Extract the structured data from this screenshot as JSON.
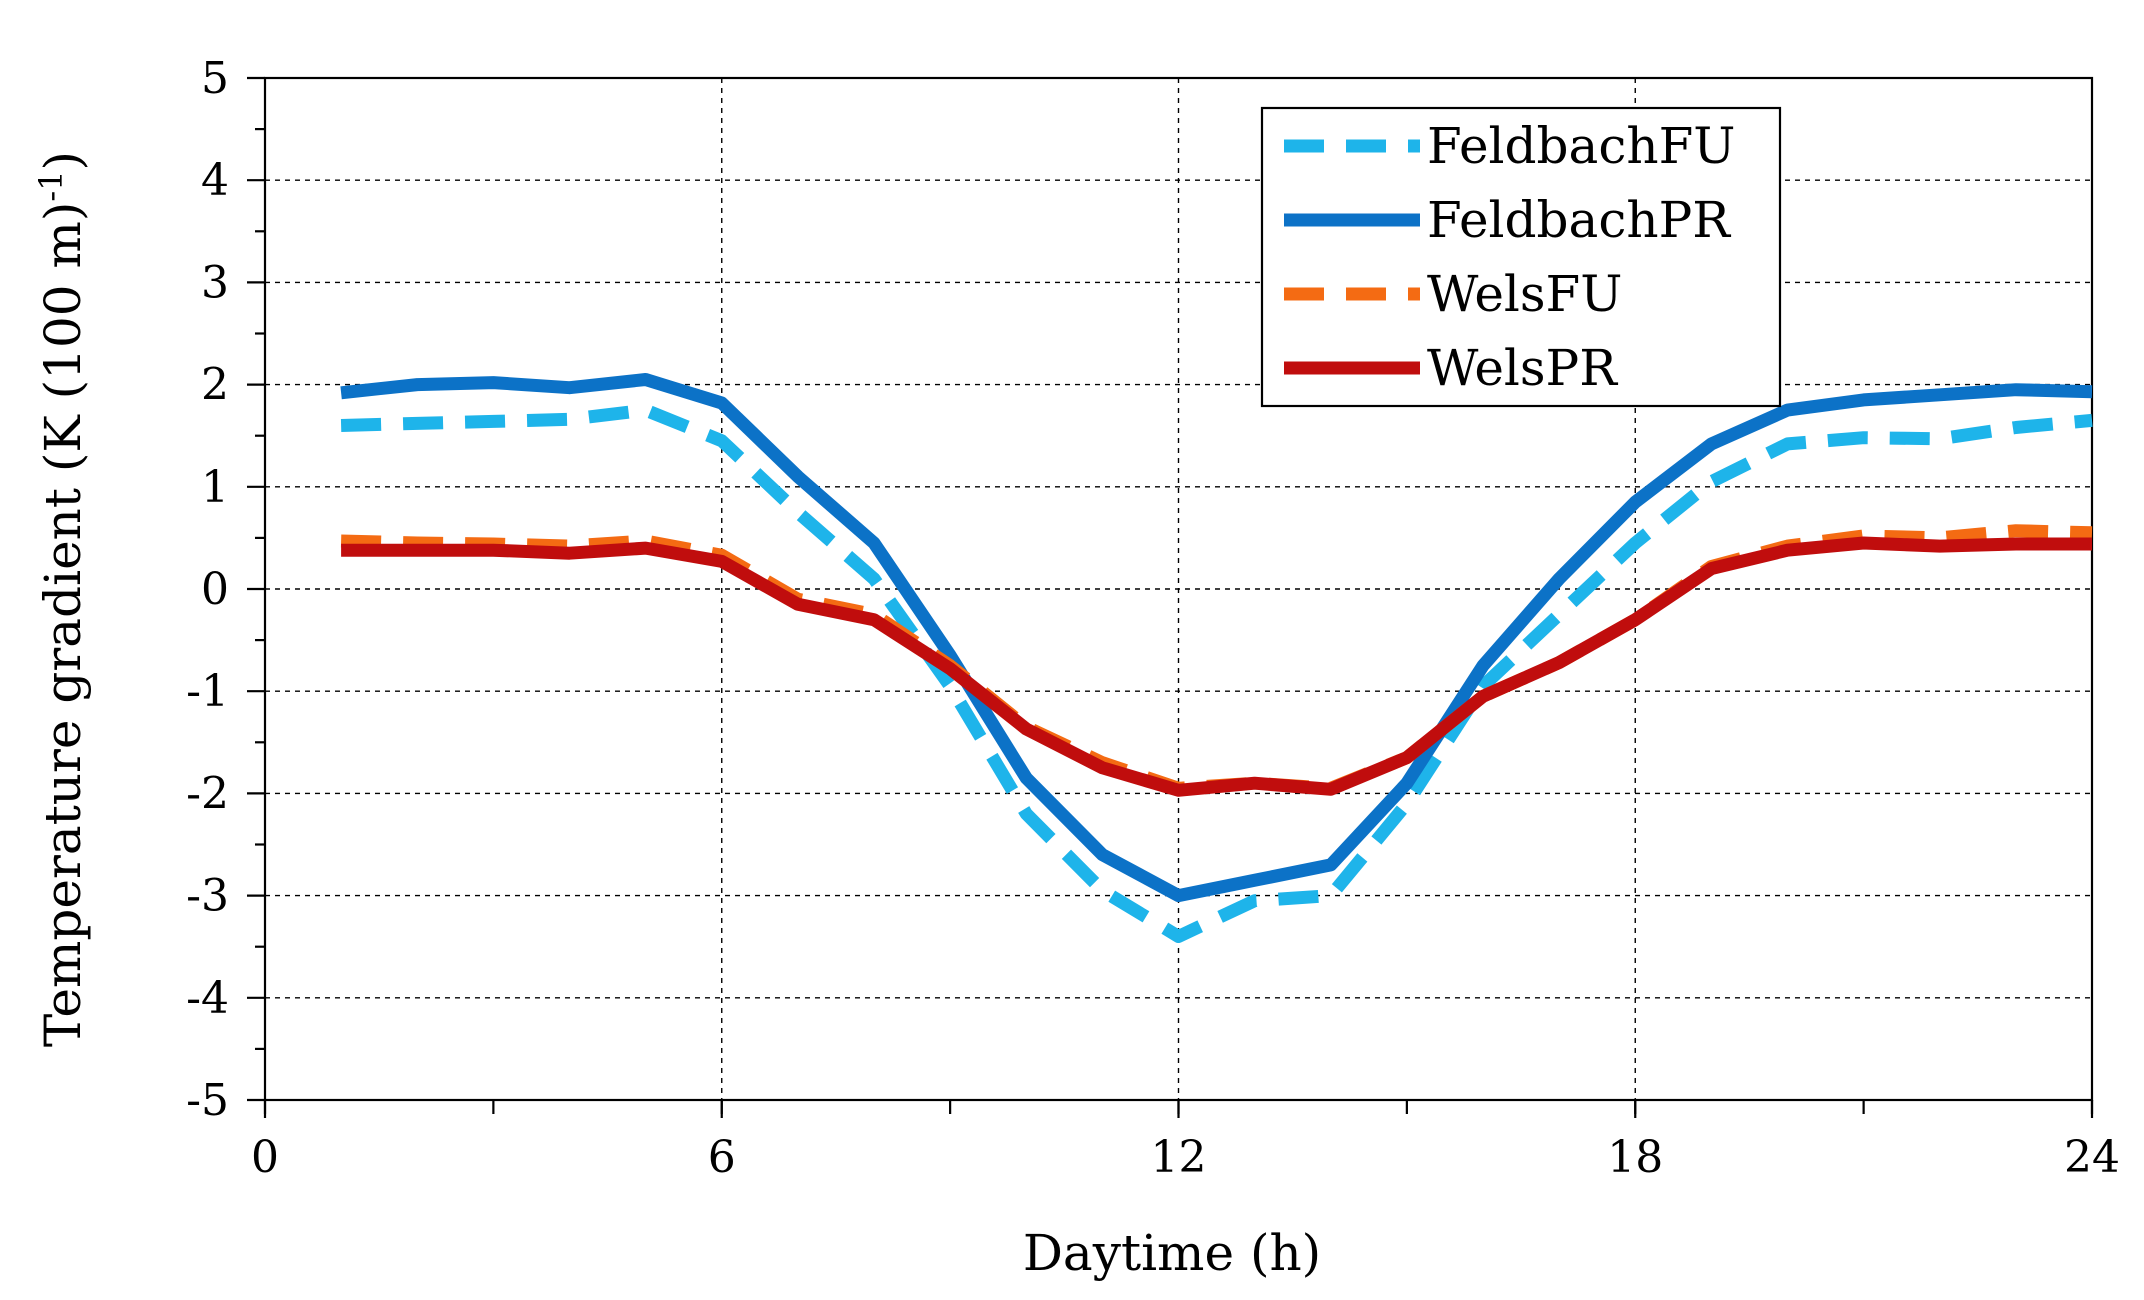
{
  "chart_data": {
    "type": "line",
    "title": "",
    "xlabel": "Daytime (h)",
    "ylabel": "Temperature  gradient  (K (100 m)",
    "ylabel_superscript": "-1",
    "ylabel_suffix": ")",
    "xlim": [
      0,
      24
    ],
    "ylim": [
      -5,
      5
    ],
    "xticks": [
      0,
      6,
      12,
      18,
      24
    ],
    "yticks": [
      -5,
      -4,
      -3,
      -2,
      -1,
      0,
      1,
      2,
      3,
      4,
      5
    ],
    "grid": true,
    "legend_position": "top-right",
    "x": [
      1,
      2,
      3,
      4,
      5,
      6,
      7,
      8,
      9,
      10,
      11,
      12,
      13,
      14,
      15,
      16,
      17,
      18,
      19,
      20,
      21,
      22,
      23,
      24
    ],
    "series": [
      {
        "name": "FeldbachFU",
        "color": "#1EB4EA",
        "dash": "dashed",
        "values": [
          1.6,
          1.62,
          1.64,
          1.66,
          1.75,
          1.45,
          0.75,
          0.1,
          -0.95,
          -2.2,
          -2.95,
          -3.4,
          -3.05,
          -3.0,
          -2.1,
          -0.95,
          -0.25,
          0.45,
          1.05,
          1.42,
          1.48,
          1.47,
          1.58,
          1.65
        ]
      },
      {
        "name": "FeldbachPR",
        "color": "#0C72C7",
        "dash": "solid",
        "values": [
          1.92,
          2.0,
          2.02,
          1.97,
          2.05,
          1.82,
          1.1,
          0.45,
          -0.65,
          -1.85,
          -2.6,
          -3.0,
          -2.85,
          -2.7,
          -1.9,
          -0.75,
          0.1,
          0.85,
          1.42,
          1.75,
          1.85,
          1.9,
          1.95,
          1.93
        ]
      },
      {
        "name": "WelsFU",
        "color": "#F46B13",
        "dash": "dashed",
        "values": [
          0.47,
          0.45,
          0.44,
          0.42,
          0.47,
          0.33,
          -0.1,
          -0.25,
          -0.75,
          -1.35,
          -1.7,
          -1.95,
          -1.9,
          -1.95,
          -1.65,
          -1.05,
          -0.72,
          -0.3,
          0.22,
          0.42,
          0.52,
          0.5,
          0.57,
          0.55
        ]
      },
      {
        "name": "WelsPR",
        "color": "#C00D0D",
        "dash": "solid",
        "values": [
          0.38,
          0.38,
          0.38,
          0.35,
          0.4,
          0.27,
          -0.15,
          -0.3,
          -0.78,
          -1.37,
          -1.75,
          -1.97,
          -1.9,
          -1.96,
          -1.65,
          -1.05,
          -0.72,
          -0.3,
          0.2,
          0.38,
          0.45,
          0.42,
          0.44,
          0.44
        ]
      }
    ]
  }
}
